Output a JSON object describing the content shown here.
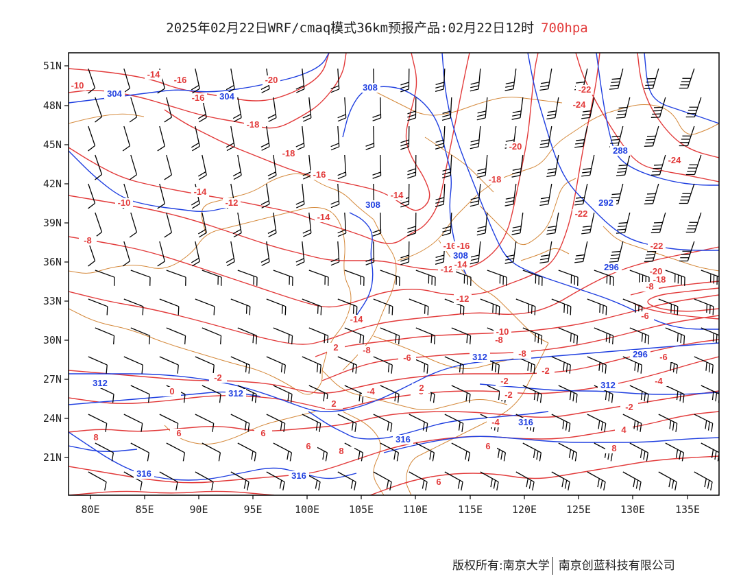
{
  "header": {
    "title": "2025年02月22日WRF/cmaq模式36km预报产品:02月22日12时",
    "level": "700hpa"
  },
  "footer": {
    "copyright_left": "版权所有:南京大学",
    "copyright_right": "南京创蓝科技有限公司"
  },
  "axes": {
    "x_ticks": [
      "80E",
      "85E",
      "90E",
      "95E",
      "100E",
      "105E",
      "110E",
      "115E",
      "120E",
      "125E",
      "130E",
      "135E"
    ],
    "y_ticks": [
      "51N",
      "48N",
      "45N",
      "42N",
      "39N",
      "36N",
      "33N",
      "30N",
      "27N",
      "24N",
      "21N"
    ]
  },
  "colors": {
    "temperature": "#e23a3a",
    "geopotential": "#1f3fe0",
    "boundary": "#d4883a",
    "wind_barb": "#000000"
  },
  "temperature_labels": [
    "-10",
    "-14",
    "-16",
    "-16",
    "-20",
    "-18",
    "-18",
    "-16",
    "-14",
    "-10",
    "-12",
    "-14",
    "-14",
    "-8",
    "-20",
    "-18",
    "-22",
    "-24",
    "-24",
    "-22",
    "-22",
    "-20",
    "-18",
    "-16",
    "-12",
    "-14",
    "-10",
    "-8",
    "-8",
    "-6",
    "-8",
    "-6",
    "-4",
    "-2",
    "-4",
    "-2",
    "-2",
    "0",
    "2",
    "2",
    "4",
    "-6",
    "6",
    "-4",
    "6",
    "8",
    "8",
    "6",
    "6",
    "6",
    "-2",
    "-2",
    "-2",
    "0",
    "2",
    "4",
    "6",
    "-6",
    "-8",
    "8",
    "-12",
    "-14",
    "-16"
  ],
  "height_labels": [
    "304",
    "304",
    "308",
    "308",
    "308",
    "296",
    "292",
    "288",
    "296",
    "308",
    "312",
    "312",
    "312",
    "312",
    "316",
    "316",
    "316",
    "316"
  ]
}
